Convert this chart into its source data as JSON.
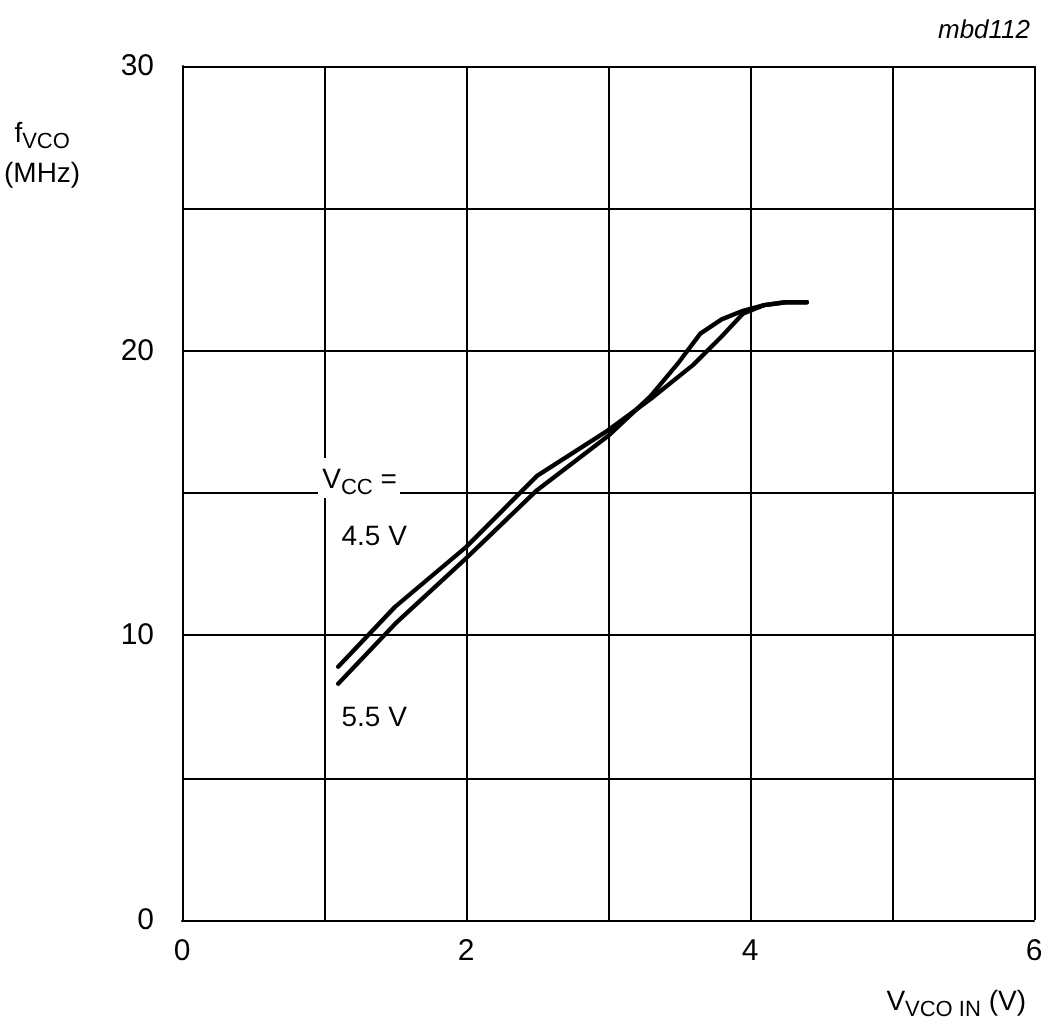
{
  "chart_data": {
    "type": "line",
    "xlabel": "V$_{VCO IN}$ (V)",
    "ylabel": "f$_{VCO}$ (MHz)",
    "annotations": [
      "V$_{CC}$ =",
      "mbd112"
    ],
    "series": [
      {
        "name": "4.5 V",
        "color": "#000000",
        "x": [
          1.1,
          1.5,
          2,
          2.5,
          3,
          3.3,
          3.6,
          3.8,
          3.95,
          4.1,
          4.25,
          4.4
        ],
        "values": [
          8.9,
          11.0,
          13.1,
          15.6,
          17.2,
          18.3,
          19.5,
          20.5,
          21.3,
          21.6,
          21.7,
          21.7
        ]
      },
      {
        "name": "5.5 V",
        "color": "#000000",
        "x": [
          1.1,
          1.5,
          2,
          2.5,
          3,
          3.3,
          3.5,
          3.65,
          3.8,
          3.95,
          4.1,
          4.25,
          4.4
        ],
        "values": [
          8.3,
          10.4,
          12.7,
          15.1,
          17.0,
          18.4,
          19.6,
          20.6,
          21.1,
          21.4,
          21.6,
          21.7,
          21.7
        ]
      }
    ],
    "xlim": [
      0,
      6
    ],
    "xticks": [
      0,
      2,
      4,
      6
    ],
    "ylim": [
      0,
      30
    ],
    "yticks": [
      0,
      10,
      20,
      30
    ],
    "grid": true,
    "legend": false,
    "marker": "none",
    "line_style": "solid"
  }
}
